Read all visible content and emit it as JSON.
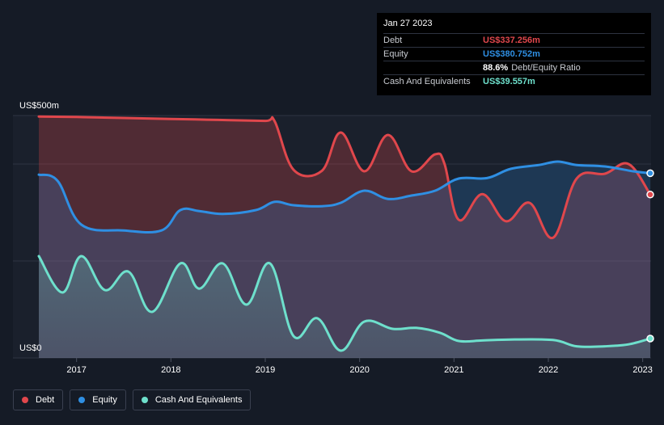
{
  "chart_data": {
    "type": "area",
    "y_axis": {
      "top_label": "US$500m",
      "bottom_label": "US$0",
      "ylim": [
        0,
        500
      ]
    },
    "x_ticks": [
      "2017",
      "2018",
      "2019",
      "2020",
      "2021",
      "2022",
      "2023"
    ],
    "x_range": [
      2016.6,
      2023.08
    ],
    "series": [
      {
        "name": "Debt",
        "color": "#e0474c",
        "points": [
          [
            2016.6,
            498
          ],
          [
            2017.0,
            497
          ],
          [
            2017.5,
            495
          ],
          [
            2018.0,
            493
          ],
          [
            2018.5,
            491
          ],
          [
            2019.0,
            489
          ],
          [
            2019.1,
            488
          ],
          [
            2019.3,
            388
          ],
          [
            2019.6,
            386
          ],
          [
            2019.8,
            465
          ],
          [
            2020.05,
            385
          ],
          [
            2020.3,
            460
          ],
          [
            2020.55,
            385
          ],
          [
            2020.8,
            420
          ],
          [
            2020.9,
            400
          ],
          [
            2021.05,
            285
          ],
          [
            2021.3,
            338
          ],
          [
            2021.55,
            282
          ],
          [
            2021.8,
            320
          ],
          [
            2022.05,
            248
          ],
          [
            2022.3,
            370
          ],
          [
            2022.6,
            380
          ],
          [
            2022.85,
            400
          ],
          [
            2023.08,
            337
          ]
        ]
      },
      {
        "name": "Equity",
        "color": "#2f8fe3",
        "points": [
          [
            2016.6,
            378
          ],
          [
            2016.8,
            365
          ],
          [
            2017.05,
            275
          ],
          [
            2017.5,
            263
          ],
          [
            2017.9,
            263
          ],
          [
            2018.1,
            305
          ],
          [
            2018.3,
            303
          ],
          [
            2018.55,
            297
          ],
          [
            2018.9,
            305
          ],
          [
            2019.1,
            322
          ],
          [
            2019.3,
            315
          ],
          [
            2019.6,
            313
          ],
          [
            2019.8,
            320
          ],
          [
            2020.05,
            345
          ],
          [
            2020.3,
            328
          ],
          [
            2020.55,
            335
          ],
          [
            2020.8,
            345
          ],
          [
            2021.05,
            370
          ],
          [
            2021.35,
            371
          ],
          [
            2021.6,
            390
          ],
          [
            2021.9,
            398
          ],
          [
            2022.1,
            405
          ],
          [
            2022.3,
            398
          ],
          [
            2022.6,
            395
          ],
          [
            2022.9,
            385
          ],
          [
            2023.08,
            381
          ]
        ]
      },
      {
        "name": "Cash And Equivalents",
        "color": "#6ee0cc",
        "points": [
          [
            2016.6,
            210
          ],
          [
            2016.85,
            135
          ],
          [
            2017.05,
            210
          ],
          [
            2017.3,
            140
          ],
          [
            2017.55,
            178
          ],
          [
            2017.8,
            95
          ],
          [
            2018.1,
            195
          ],
          [
            2018.3,
            143
          ],
          [
            2018.55,
            195
          ],
          [
            2018.8,
            110
          ],
          [
            2019.05,
            195
          ],
          [
            2019.3,
            45
          ],
          [
            2019.55,
            82
          ],
          [
            2019.8,
            15
          ],
          [
            2020.05,
            75
          ],
          [
            2020.35,
            60
          ],
          [
            2020.6,
            62
          ],
          [
            2020.85,
            52
          ],
          [
            2021.05,
            35
          ],
          [
            2021.3,
            36
          ],
          [
            2021.6,
            38
          ],
          [
            2022.05,
            37
          ],
          [
            2022.3,
            24
          ],
          [
            2022.6,
            24
          ],
          [
            2022.85,
            28
          ],
          [
            2023.08,
            40
          ]
        ]
      }
    ],
    "legend": [
      "Debt",
      "Equity",
      "Cash And Equivalents"
    ]
  },
  "tooltip": {
    "date": "Jan 27 2023",
    "rows": [
      {
        "label": "Debt",
        "value": "US$337.256m",
        "color": "#e0474c",
        "suffix": ""
      },
      {
        "label": "Equity",
        "value": "US$380.752m",
        "color": "#2f8fe3",
        "suffix": ""
      },
      {
        "label": "",
        "value": "88.6%",
        "color": "#ffffff",
        "suffix": "Debt/Equity Ratio"
      },
      {
        "label": "Cash And Equivalents",
        "value": "US$39.557m",
        "color": "#6ee0cc",
        "suffix": ""
      }
    ]
  },
  "legend_items": [
    {
      "label": "Debt",
      "color": "#e0474c"
    },
    {
      "label": "Equity",
      "color": "#2f8fe3"
    },
    {
      "label": "Cash And Equivalents",
      "color": "#6ee0cc"
    }
  ]
}
